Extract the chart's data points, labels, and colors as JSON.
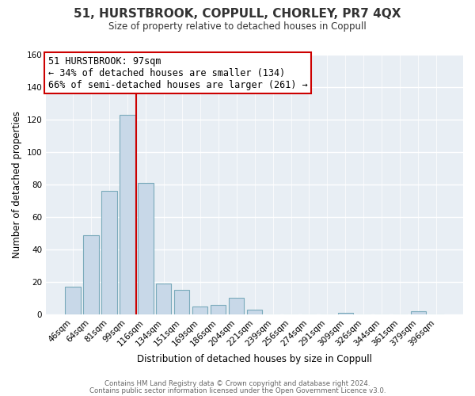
{
  "title": "51, HURSTBROOK, COPPULL, CHORLEY, PR7 4QX",
  "subtitle": "Size of property relative to detached houses in Coppull",
  "xlabel": "Distribution of detached houses by size in Coppull",
  "ylabel": "Number of detached properties",
  "bar_labels": [
    "46sqm",
    "64sqm",
    "81sqm",
    "99sqm",
    "116sqm",
    "134sqm",
    "151sqm",
    "169sqm",
    "186sqm",
    "204sqm",
    "221sqm",
    "239sqm",
    "256sqm",
    "274sqm",
    "291sqm",
    "309sqm",
    "326sqm",
    "344sqm",
    "361sqm",
    "379sqm",
    "396sqm"
  ],
  "bar_values": [
    17,
    49,
    76,
    123,
    81,
    19,
    15,
    5,
    6,
    10,
    3,
    0,
    0,
    0,
    0,
    1,
    0,
    0,
    0,
    2,
    0
  ],
  "bar_color": "#c8d8e8",
  "bar_edge_color": "#7aaabb",
  "vline_color": "#cc0000",
  "vline_bar_index": 3,
  "ylim": [
    0,
    160
  ],
  "yticks": [
    0,
    20,
    40,
    60,
    80,
    100,
    120,
    140,
    160
  ],
  "annotation_title": "51 HURSTBROOK: 97sqm",
  "annotation_line1": "← 34% of detached houses are smaller (134)",
  "annotation_line2": "66% of semi-detached houses are larger (261) →",
  "annotation_box_color": "#ffffff",
  "annotation_box_edge": "#cc0000",
  "footer1": "Contains HM Land Registry data © Crown copyright and database right 2024.",
  "footer2": "Contains public sector information licensed under the Open Government Licence v3.0.",
  "fig_bg_color": "#ffffff",
  "ax_bg_color": "#e8eef4"
}
